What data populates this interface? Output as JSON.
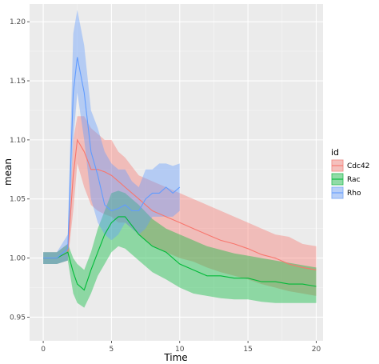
{
  "chart_data": {
    "type": "line",
    "xlabel": "Time",
    "ylabel": "mean",
    "xlim": [
      -1,
      20.5
    ],
    "ylim": [
      0.93,
      1.215
    ],
    "x_ticks": [
      0,
      5,
      10,
      15,
      20
    ],
    "y_ticks": [
      0.95,
      1.0,
      1.05,
      1.1,
      1.15,
      1.2
    ],
    "y_tick_labels": [
      "0.95",
      "1.00",
      "1.05",
      "1.10",
      "1.15",
      "1.20"
    ],
    "grid": true,
    "legend": {
      "title": "id",
      "placement": "right",
      "entries": [
        "Cdc42",
        "Rac",
        "Rho"
      ]
    },
    "series": [
      {
        "name": "Cdc42",
        "color": "#F8766D",
        "x": [
          0,
          1,
          1.8,
          2.2,
          2.5,
          3,
          3.5,
          4,
          4.5,
          5,
          5.5,
          6,
          7,
          8,
          9,
          10,
          11,
          12,
          13,
          14,
          15,
          16,
          17,
          18,
          19,
          20
        ],
        "mean": [
          1.0,
          1.0,
          1.005,
          1.07,
          1.1,
          1.09,
          1.075,
          1.075,
          1.073,
          1.07,
          1.065,
          1.06,
          1.05,
          1.04,
          1.035,
          1.03,
          1.025,
          1.02,
          1.015,
          1.012,
          1.008,
          1.003,
          1.0,
          0.995,
          0.992,
          0.99
        ],
        "lower": [
          0.995,
          0.995,
          0.998,
          1.04,
          1.08,
          1.06,
          1.045,
          1.04,
          1.037,
          1.035,
          1.03,
          1.03,
          1.02,
          1.01,
          1.005,
          1.0,
          0.997,
          0.992,
          0.988,
          0.985,
          0.982,
          0.978,
          0.975,
          0.972,
          0.97,
          0.968
        ],
        "upper": [
          1.005,
          1.005,
          1.012,
          1.1,
          1.12,
          1.12,
          1.11,
          1.105,
          1.1,
          1.1,
          1.09,
          1.085,
          1.07,
          1.065,
          1.06,
          1.055,
          1.05,
          1.045,
          1.04,
          1.035,
          1.03,
          1.025,
          1.02,
          1.018,
          1.012,
          1.01
        ]
      },
      {
        "name": "Rac",
        "color": "#00BA38",
        "x": [
          0,
          1,
          1.8,
          2.2,
          2.5,
          3,
          3.5,
          4,
          4.5,
          5,
          5.5,
          6,
          7,
          8,
          9,
          10,
          11,
          12,
          13,
          14,
          15,
          16,
          17,
          18,
          19,
          20
        ],
        "mean": [
          1.0,
          1.0,
          1.005,
          0.988,
          0.978,
          0.973,
          0.99,
          1.005,
          1.02,
          1.03,
          1.035,
          1.035,
          1.02,
          1.01,
          1.005,
          0.995,
          0.99,
          0.985,
          0.985,
          0.983,
          0.983,
          0.98,
          0.98,
          0.978,
          0.978,
          0.976
        ],
        "lower": [
          0.995,
          0.995,
          0.998,
          0.97,
          0.962,
          0.958,
          0.97,
          0.985,
          0.995,
          1.005,
          1.01,
          1.008,
          0.998,
          0.988,
          0.982,
          0.975,
          0.97,
          0.968,
          0.966,
          0.965,
          0.965,
          0.963,
          0.962,
          0.962,
          0.962,
          0.962
        ],
        "upper": [
          1.005,
          1.005,
          1.012,
          1.0,
          0.995,
          0.99,
          1.005,
          1.025,
          1.04,
          1.055,
          1.057,
          1.055,
          1.045,
          1.033,
          1.025,
          1.02,
          1.015,
          1.01,
          1.007,
          1.004,
          1.002,
          1.0,
          0.998,
          0.996,
          0.994,
          0.992
        ]
      },
      {
        "name": "Rho",
        "color": "#619CFF",
        "x": [
          0,
          1,
          1.8,
          2.2,
          2.5,
          3,
          3.5,
          4,
          4.5,
          5,
          5.5,
          6,
          6.5,
          7,
          7.5,
          8,
          8.5,
          9,
          9.5,
          10
        ],
        "mean": [
          1.0,
          1.0,
          1.008,
          1.14,
          1.17,
          1.14,
          1.09,
          1.07,
          1.045,
          1.04,
          1.042,
          1.045,
          1.04,
          1.04,
          1.05,
          1.055,
          1.055,
          1.06,
          1.055,
          1.06
        ],
        "lower": [
          0.995,
          0.995,
          0.998,
          1.1,
          1.14,
          1.1,
          1.05,
          1.03,
          1.02,
          1.015,
          1.02,
          1.03,
          1.025,
          1.02,
          1.025,
          1.035,
          1.035,
          1.035,
          1.035,
          1.04
        ],
        "upper": [
          1.005,
          1.005,
          1.02,
          1.19,
          1.21,
          1.18,
          1.125,
          1.11,
          1.09,
          1.08,
          1.075,
          1.075,
          1.065,
          1.06,
          1.075,
          1.075,
          1.08,
          1.08,
          1.078,
          1.08
        ]
      }
    ]
  }
}
